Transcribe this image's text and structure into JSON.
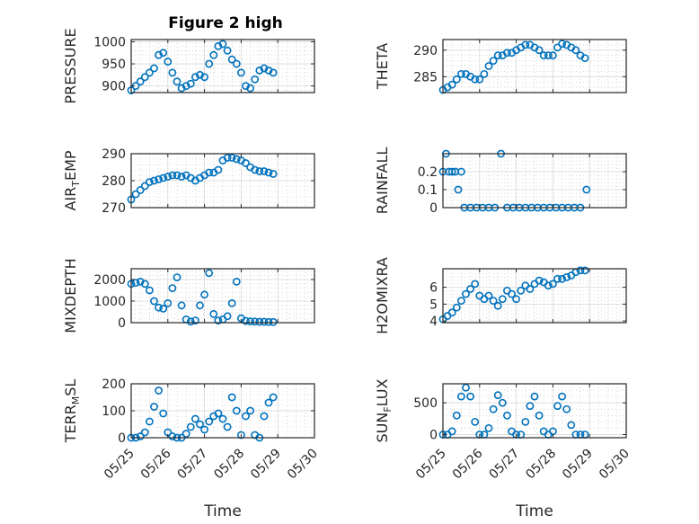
{
  "figure": {
    "title": "Figure 2 high",
    "marker_color": "#0072BD"
  },
  "chart_data": [
    {
      "type": "scatter",
      "ylabel": "PRESSURE",
      "ylim": [
        885,
        1005
      ],
      "yticks": [
        900,
        950,
        1000
      ],
      "grid": true,
      "x": [
        "05/25 00:00",
        "05/25 03:00",
        "05/25 06:00",
        "05/25 09:00",
        "05/25 12:00",
        "05/25 15:00",
        "05/25 18:00",
        "05/25 21:00",
        "05/26 00:00",
        "05/26 03:00",
        "05/26 06:00",
        "05/26 09:00",
        "05/26 12:00",
        "05/26 15:00",
        "05/26 18:00",
        "05/26 21:00",
        "05/27 00:00",
        "05/27 03:00",
        "05/27 06:00",
        "05/27 09:00",
        "05/27 12:00",
        "05/27 15:00",
        "05/27 18:00",
        "05/27 21:00",
        "05/28 00:00",
        "05/28 03:00",
        "05/28 06:00",
        "05/28 09:00",
        "05/28 12:00",
        "05/28 15:00",
        "05/28 18:00",
        "05/28 21:00"
      ],
      "y": [
        890,
        900,
        910,
        920,
        930,
        940,
        970,
        975,
        955,
        930,
        910,
        895,
        900,
        905,
        920,
        925,
        920,
        950,
        970,
        990,
        995,
        980,
        960,
        950,
        930,
        900,
        895,
        915,
        935,
        940,
        935,
        930
      ]
    },
    {
      "type": "scatter",
      "ylabel": "THETA",
      "ylim": [
        282,
        292
      ],
      "yticks": [
        285,
        290
      ],
      "grid": true,
      "x": [
        "05/25 00:00",
        "05/25 03:00",
        "05/25 06:00",
        "05/25 09:00",
        "05/25 12:00",
        "05/25 15:00",
        "05/25 18:00",
        "05/25 21:00",
        "05/26 00:00",
        "05/26 03:00",
        "05/26 06:00",
        "05/26 09:00",
        "05/26 12:00",
        "05/26 15:00",
        "05/26 18:00",
        "05/26 21:00",
        "05/27 00:00",
        "05/27 03:00",
        "05/27 06:00",
        "05/27 09:00",
        "05/27 12:00",
        "05/27 15:00",
        "05/27 18:00",
        "05/27 21:00",
        "05/28 00:00",
        "05/28 03:00",
        "05/28 06:00",
        "05/28 09:00",
        "05/28 12:00",
        "05/28 15:00",
        "05/28 18:00",
        "05/28 21:00"
      ],
      "y": [
        282.5,
        283,
        283.5,
        284.5,
        285.5,
        285.5,
        285,
        284.5,
        284.5,
        285.5,
        287,
        288,
        289,
        289,
        289.5,
        289.5,
        290,
        290.5,
        291,
        291,
        290.5,
        290,
        289,
        289,
        289,
        290.5,
        291.2,
        291,
        290.5,
        290,
        289,
        288.5
      ]
    },
    {
      "type": "scatter",
      "ylabel": "AIR_TEMP",
      "ylim": [
        270,
        290
      ],
      "yticks": [
        270,
        280,
        290
      ],
      "grid": true,
      "x": [
        "05/25 00:00",
        "05/25 03:00",
        "05/25 06:00",
        "05/25 09:00",
        "05/25 12:00",
        "05/25 15:00",
        "05/25 18:00",
        "05/25 21:00",
        "05/26 00:00",
        "05/26 03:00",
        "05/26 06:00",
        "05/26 09:00",
        "05/26 12:00",
        "05/26 15:00",
        "05/26 18:00",
        "05/26 21:00",
        "05/27 00:00",
        "05/27 03:00",
        "05/27 06:00",
        "05/27 09:00",
        "05/27 12:00",
        "05/27 15:00",
        "05/27 18:00",
        "05/27 21:00",
        "05/28 00:00",
        "05/28 03:00",
        "05/28 06:00",
        "05/28 09:00",
        "05/28 12:00",
        "05/28 15:00",
        "05/28 18:00",
        "05/28 21:00"
      ],
      "y": [
        273,
        275,
        276.5,
        278,
        279.5,
        280,
        280.5,
        281,
        281.5,
        282,
        282,
        281.5,
        282,
        281,
        280,
        281,
        282,
        283,
        283,
        284,
        287.5,
        288.5,
        288.5,
        288,
        287.5,
        286.5,
        285,
        284,
        283.5,
        283.5,
        283,
        282.5
      ]
    },
    {
      "type": "scatter",
      "ylabel": "RAINFALL",
      "ylim": [
        0,
        0.3
      ],
      "yticks": [
        0,
        0.1,
        0.2
      ],
      "grid": true,
      "x": [
        "05/25 00:00",
        "05/25 02:00",
        "05/25 04:00",
        "05/25 06:00",
        "05/25 08:00",
        "05/25 10:00",
        "05/25 12:00",
        "05/25 14:00",
        "05/25 18:00",
        "05/25 22:00",
        "05/26 02:00",
        "05/26 06:00",
        "05/26 10:00",
        "05/26 14:00",
        "05/26 18:00",
        "05/26 22:00",
        "05/27 02:00",
        "05/27 06:00",
        "05/27 10:00",
        "05/27 14:00",
        "05/27 18:00",
        "05/27 22:00",
        "05/28 02:00",
        "05/28 06:00",
        "05/28 10:00",
        "05/28 14:00",
        "05/28 18:00",
        "05/28 22:00"
      ],
      "y": [
        0.2,
        0.3,
        0.2,
        0.2,
        0.2,
        0.1,
        0.2,
        0,
        0,
        0,
        0,
        0,
        0,
        0.3,
        0,
        0,
        0,
        0,
        0,
        0,
        0,
        0,
        0,
        0,
        0,
        0,
        0,
        0.1
      ]
    },
    {
      "type": "scatter",
      "ylabel": "MIXDEPTH",
      "ylim": [
        0,
        2500
      ],
      "yticks": [
        0,
        1000,
        2000
      ],
      "grid": true,
      "x": [
        "05/25 00:00",
        "05/25 03:00",
        "05/25 06:00",
        "05/25 09:00",
        "05/25 12:00",
        "05/25 15:00",
        "05/25 18:00",
        "05/25 21:00",
        "05/26 00:00",
        "05/26 03:00",
        "05/26 06:00",
        "05/26 09:00",
        "05/26 12:00",
        "05/26 15:00",
        "05/26 18:00",
        "05/26 21:00",
        "05/27 00:00",
        "05/27 03:00",
        "05/27 06:00",
        "05/27 09:00",
        "05/27 12:00",
        "05/27 15:00",
        "05/27 18:00",
        "05/27 21:00",
        "05/28 00:00",
        "05/28 03:00",
        "05/28 06:00",
        "05/28 09:00",
        "05/28 12:00",
        "05/28 15:00",
        "05/28 18:00",
        "05/28 21:00"
      ],
      "y": [
        1800,
        1850,
        1900,
        1800,
        1500,
        1000,
        700,
        650,
        900,
        1600,
        2100,
        800,
        150,
        50,
        100,
        800,
        1300,
        2300,
        400,
        100,
        150,
        300,
        900,
        1900,
        200,
        80,
        60,
        50,
        40,
        40,
        30,
        30
      ]
    },
    {
      "type": "scatter",
      "ylabel": "H2OMIXRA",
      "ylim": [
        3.9,
        7.1
      ],
      "yticks": [
        4,
        5,
        6
      ],
      "grid": true,
      "x": [
        "05/25 00:00",
        "05/25 03:00",
        "05/25 06:00",
        "05/25 09:00",
        "05/25 12:00",
        "05/25 15:00",
        "05/25 18:00",
        "05/25 21:00",
        "05/26 00:00",
        "05/26 03:00",
        "05/26 06:00",
        "05/26 09:00",
        "05/26 12:00",
        "05/26 15:00",
        "05/26 18:00",
        "05/26 21:00",
        "05/27 00:00",
        "05/27 03:00",
        "05/27 06:00",
        "05/27 09:00",
        "05/27 12:00",
        "05/27 15:00",
        "05/27 18:00",
        "05/27 21:00",
        "05/28 00:00",
        "05/28 03:00",
        "05/28 06:00",
        "05/28 09:00",
        "05/28 12:00",
        "05/28 15:00",
        "05/28 18:00",
        "05/28 21:00"
      ],
      "y": [
        4.1,
        4.3,
        4.5,
        4.8,
        5.2,
        5.6,
        5.9,
        6.2,
        5.5,
        5.3,
        5.5,
        5.2,
        4.9,
        5.3,
        5.8,
        5.6,
        5.3,
        5.8,
        6.1,
        5.9,
        6.2,
        6.4,
        6.3,
        6.1,
        6.2,
        6.5,
        6.5,
        6.6,
        6.7,
        6.9,
        7.0,
        7.0
      ]
    },
    {
      "type": "scatter",
      "ylabel": "TERR_MSL",
      "ylim": [
        0,
        200
      ],
      "yticks": [
        0,
        100,
        200
      ],
      "grid": true,
      "xlabel": "Time",
      "x": [
        "05/25 00:00",
        "05/25 03:00",
        "05/25 06:00",
        "05/25 09:00",
        "05/25 12:00",
        "05/25 15:00",
        "05/25 18:00",
        "05/25 21:00",
        "05/26 00:00",
        "05/26 03:00",
        "05/26 06:00",
        "05/26 09:00",
        "05/26 12:00",
        "05/26 15:00",
        "05/26 18:00",
        "05/26 21:00",
        "05/27 00:00",
        "05/27 03:00",
        "05/27 06:00",
        "05/27 09:00",
        "05/27 12:00",
        "05/27 15:00",
        "05/27 18:00",
        "05/27 21:00",
        "05/28 00:00",
        "05/28 03:00",
        "05/28 06:00",
        "05/28 09:00",
        "05/28 12:00",
        "05/28 15:00",
        "05/28 18:00",
        "05/28 21:00"
      ],
      "y": [
        0,
        0,
        5,
        20,
        60,
        115,
        175,
        90,
        20,
        5,
        0,
        0,
        15,
        40,
        70,
        50,
        30,
        60,
        80,
        90,
        70,
        40,
        150,
        100,
        10,
        80,
        100,
        10,
        0,
        80,
        130,
        150
      ]
    },
    {
      "type": "scatter",
      "ylabel": "SUN_FLUX",
      "ylim": [
        -50,
        800
      ],
      "yticks": [
        0,
        500
      ],
      "grid": true,
      "xlabel": "Time",
      "x": [
        "05/25 00:00",
        "05/25 03:00",
        "05/25 06:00",
        "05/25 09:00",
        "05/25 12:00",
        "05/25 15:00",
        "05/25 18:00",
        "05/25 21:00",
        "05/26 00:00",
        "05/26 03:00",
        "05/26 06:00",
        "05/26 09:00",
        "05/26 12:00",
        "05/26 15:00",
        "05/26 18:00",
        "05/26 21:00",
        "05/27 00:00",
        "05/27 03:00",
        "05/27 06:00",
        "05/27 09:00",
        "05/27 12:00",
        "05/27 15:00",
        "05/27 18:00",
        "05/27 21:00",
        "05/28 00:00",
        "05/28 03:00",
        "05/28 06:00",
        "05/28 09:00",
        "05/28 12:00",
        "05/28 15:00",
        "05/28 18:00",
        "05/28 21:00"
      ],
      "y": [
        0,
        0,
        50,
        300,
        600,
        740,
        600,
        200,
        0,
        0,
        100,
        400,
        620,
        500,
        300,
        50,
        0,
        0,
        200,
        450,
        600,
        300,
        50,
        0,
        50,
        450,
        600,
        400,
        150,
        0,
        0,
        0
      ]
    }
  ],
  "shared_x": {
    "tick_labels": [
      "05/25",
      "05/26",
      "05/27",
      "05/28",
      "05/29",
      "05/30"
    ],
    "range": [
      "05/25 00:00",
      "05/30 00:00"
    ]
  }
}
